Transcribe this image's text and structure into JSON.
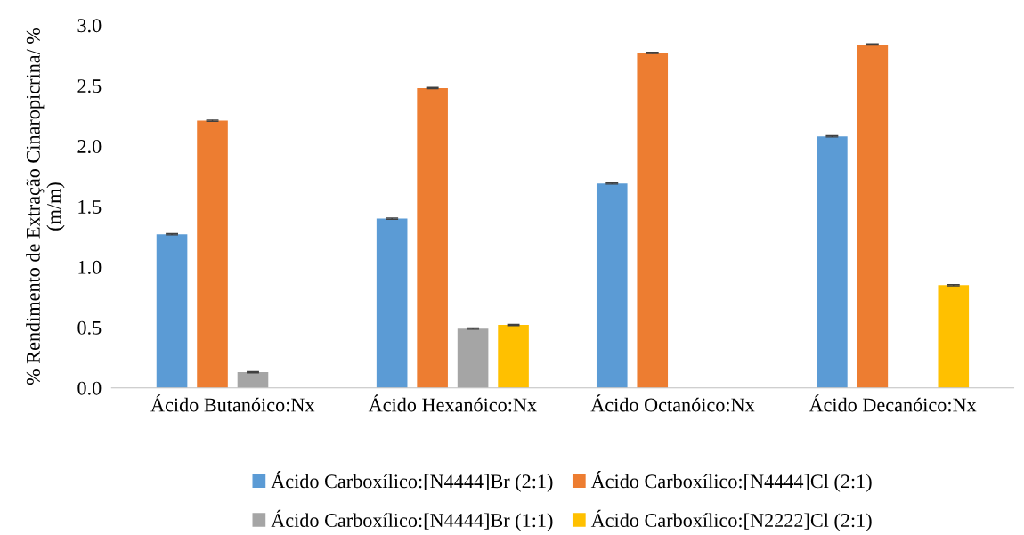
{
  "chart_data": {
    "type": "bar",
    "ylabel": "% Rendimento de Extração Cinaropicrina/ %\n(m/m)",
    "categories": [
      "Ácido Butanóico:Nx",
      "Ácido Hexanóico:Nx",
      "Ácido Octanóico:Nx",
      "Ácido Decanóico:Nx"
    ],
    "series": [
      {
        "name": "Ácido Carboxílico:[N4444]Br (2:1)",
        "color": "#5b9bd5",
        "values": [
          1.27,
          1.4,
          1.69,
          2.08
        ],
        "errors": [
          0.005,
          0.005,
          0.005,
          0.005
        ]
      },
      {
        "name": "Ácido Carboxílico:[N4444]Cl (2:1)",
        "color": "#ed7d31",
        "values": [
          2.21,
          2.48,
          2.77,
          2.84
        ],
        "errors": [
          0.005,
          0.005,
          0.005,
          0.005
        ]
      },
      {
        "name": "Ácido Carboxílico:[N4444]Br (1:1)",
        "color": "#a5a5a5",
        "values": [
          0.13,
          0.49,
          null,
          null
        ],
        "errors": [
          0.005,
          0.005,
          null,
          null
        ]
      },
      {
        "name": "Ácido Carboxílico:[N2222]Cl (2:1)",
        "color": "#ffc000",
        "values": [
          null,
          0.52,
          null,
          0.85
        ],
        "errors": [
          null,
          0.005,
          null,
          0.005
        ]
      }
    ],
    "ylim": [
      0,
      3
    ],
    "yticks": [
      {
        "value": 0,
        "label": "0.0"
      },
      {
        "value": 0.5,
        "label": "0.5"
      },
      {
        "value": 1,
        "label": "1.0"
      },
      {
        "value": 1.5,
        "label": "1.5"
      },
      {
        "value": 2,
        "label": "2.0"
      },
      {
        "value": 2.5,
        "label": "2.5"
      },
      {
        "value": 3,
        "label": "3.0"
      }
    ],
    "grid": false,
    "legend": "bottom"
  }
}
